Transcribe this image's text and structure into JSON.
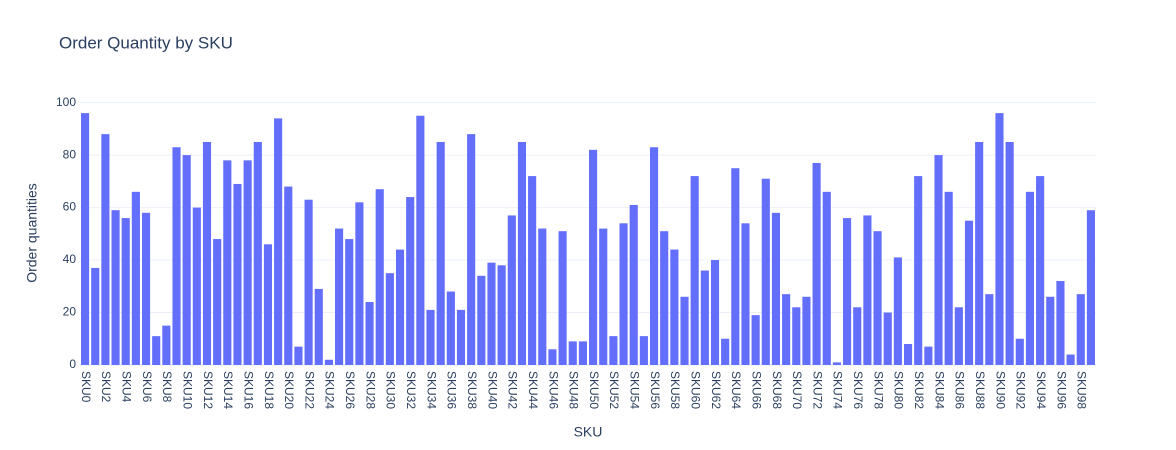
{
  "chart_data": {
    "type": "bar",
    "title": "Order Quantity by SKU",
    "x_label": "SKU",
    "y_label": "Order quantities",
    "categories": [
      "SKU0",
      null,
      "SKU2",
      null,
      "SKU4",
      null,
      "SKU6",
      null,
      "SKU8",
      null,
      "SKU10",
      null,
      "SKU12",
      null,
      "SKU14",
      null,
      "SKU16",
      null,
      "SKU18",
      null,
      "SKU20",
      null,
      "SKU22",
      null,
      "SKU24",
      null,
      "SKU26",
      null,
      "SKU28",
      null,
      "SKU30",
      null,
      "SKU32",
      null,
      "SKU34",
      null,
      "SKU36",
      null,
      "SKU38",
      null,
      "SKU40",
      null,
      "SKU42",
      null,
      "SKU44",
      null,
      "SKU46",
      null,
      "SKU48",
      null,
      "SKU50",
      null,
      "SKU52",
      null,
      "SKU54",
      null,
      "SKU56",
      null,
      "SKU58",
      null,
      "SKU60",
      null,
      "SKU62",
      null,
      "SKU64",
      null,
      "SKU66",
      null,
      "SKU68",
      null,
      "SKU70",
      null,
      "SKU72",
      null,
      "SKU74",
      null,
      "SKU76",
      null,
      "SKU78",
      null,
      "SKU80",
      null,
      "SKU82",
      null,
      "SKU84",
      null,
      "SKU86",
      null,
      "SKU88",
      null,
      "SKU90",
      null,
      "SKU92",
      null,
      "SKU94",
      null,
      "SKU96",
      null,
      "SKU98",
      null
    ],
    "values": [
      96,
      37,
      88,
      59,
      56,
      66,
      58,
      11,
      15,
      83,
      80,
      60,
      85,
      48,
      78,
      69,
      78,
      85,
      46,
      94,
      68,
      7,
      63,
      29,
      2,
      52,
      48,
      62,
      24,
      67,
      35,
      44,
      64,
      95,
      21,
      85,
      28,
      21,
      88,
      34,
      39,
      38,
      57,
      85,
      72,
      52,
      6,
      51,
      9,
      9,
      82,
      52,
      11,
      54,
      61,
      11,
      83,
      51,
      44,
      26,
      72,
      36,
      40,
      10,
      75,
      54,
      19,
      71,
      58,
      27,
      22,
      26,
      77,
      66,
      1,
      56,
      22,
      57,
      51,
      20,
      41,
      8,
      72,
      7,
      80,
      66,
      22,
      55,
      85,
      27,
      96,
      85,
      10,
      66,
      72,
      26,
      32,
      4,
      27,
      59
    ],
    "color": "#636efa",
    "ylim": [
      0,
      101
    ],
    "yticks": [
      0,
      20,
      40,
      60,
      80,
      100
    ],
    "grid": true
  }
}
